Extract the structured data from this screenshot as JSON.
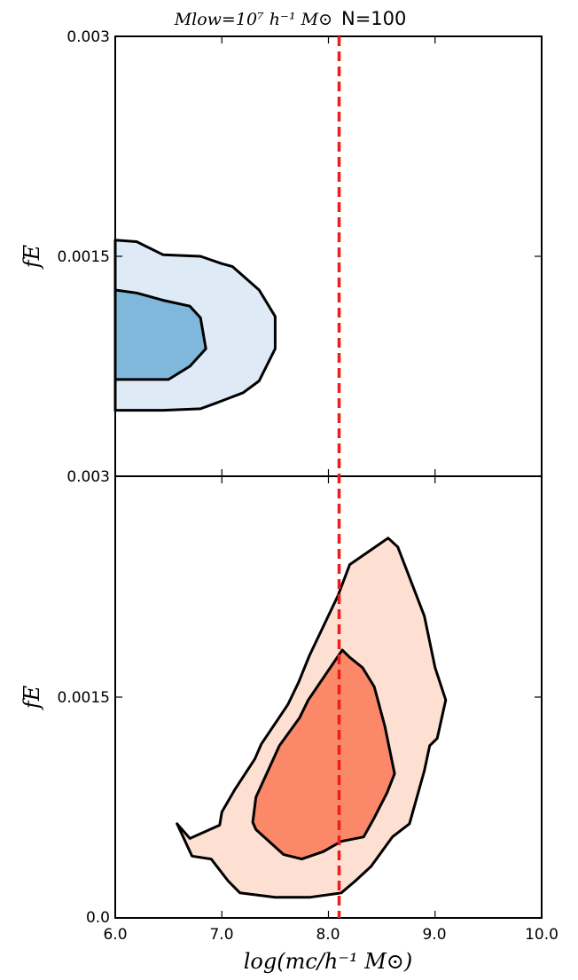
{
  "chart_data": {
    "type": "contour",
    "title_math": "Mlow=10⁷ h⁻¹ M⊙",
    "title_text": "N=100",
    "xlabel": "log(mc/h⁻¹ M⊙)",
    "xlim": [
      6.0,
      10.0
    ],
    "x_ticks": [
      "6.0",
      "7.0",
      "8.0",
      "9.0",
      "10.0"
    ],
    "reference_line": {
      "x": 8.1,
      "color": "#ee1c1c",
      "style": "dashed"
    },
    "panels": [
      {
        "id": "top",
        "ylabel": "fE",
        "ylim": [
          0.0,
          0.003
        ],
        "y_ticks": [
          "0.003",
          "0.0015"
        ],
        "outer_fill": "#deebf7",
        "inner_fill": "#7fb8da",
        "outer_contour": [
          [
            6.0,
            0.00161
          ],
          [
            6.2,
            0.0016
          ],
          [
            6.45,
            0.00151
          ],
          [
            6.8,
            0.0015
          ],
          [
            7.0,
            0.00145
          ],
          [
            7.1,
            0.00143
          ],
          [
            7.35,
            0.00127
          ],
          [
            7.5,
            0.00109
          ],
          [
            7.5,
            0.00087
          ],
          [
            7.35,
            0.00065
          ],
          [
            7.2,
            0.00057
          ],
          [
            6.95,
            0.0005
          ],
          [
            6.8,
            0.00046
          ],
          [
            6.45,
            0.00045
          ],
          [
            6.0,
            0.00045
          ]
        ],
        "inner_contour": [
          [
            6.0,
            0.00127
          ],
          [
            6.2,
            0.00125
          ],
          [
            6.45,
            0.0012
          ],
          [
            6.7,
            0.00116
          ],
          [
            6.8,
            0.00108
          ],
          [
            6.85,
            0.00087
          ],
          [
            6.7,
            0.00075
          ],
          [
            6.5,
            0.00066
          ],
          [
            6.0,
            0.00066
          ]
        ]
      },
      {
        "id": "bottom",
        "ylabel": "fE",
        "ylim": [
          0.0,
          0.003
        ],
        "y_ticks": [
          "0.003",
          "0.0015",
          "0.0"
        ],
        "outer_fill": "#fde0d2",
        "inner_fill": "#fb8868",
        "outer_contour": [
          [
            6.58,
            0.00064
          ],
          [
            6.7,
            0.00054
          ],
          [
            6.98,
            0.00063
          ],
          [
            7.0,
            0.00072
          ],
          [
            7.12,
            0.00087
          ],
          [
            7.31,
            0.00108
          ],
          [
            7.37,
            0.00118
          ],
          [
            7.62,
            0.00145
          ],
          [
            7.72,
            0.0016
          ],
          [
            7.82,
            0.00178
          ],
          [
            8.09,
            0.00219
          ],
          [
            8.2,
            0.0024
          ],
          [
            8.4,
            0.0025
          ],
          [
            8.56,
            0.00258
          ],
          [
            8.65,
            0.00252
          ],
          [
            8.9,
            0.00205
          ],
          [
            9.0,
            0.0017
          ],
          [
            9.1,
            0.00148
          ],
          [
            9.02,
            0.00122
          ],
          [
            8.95,
            0.00117
          ],
          [
            8.9,
            0.001
          ],
          [
            8.76,
            0.00064
          ],
          [
            8.6,
            0.00055
          ],
          [
            8.4,
            0.00035
          ],
          [
            8.25,
            0.00025
          ],
          [
            8.12,
            0.00017
          ],
          [
            7.82,
            0.00014
          ],
          [
            7.5,
            0.00014
          ],
          [
            7.17,
            0.00017
          ],
          [
            7.06,
            0.00025
          ],
          [
            6.9,
            0.0004
          ],
          [
            6.72,
            0.00042
          ],
          [
            6.58,
            0.00064
          ]
        ],
        "inner_contour": [
          [
            7.29,
            0.00065
          ],
          [
            7.32,
            0.00082
          ],
          [
            7.54,
            0.00117
          ],
          [
            7.73,
            0.00136
          ],
          [
            7.81,
            0.00148
          ],
          [
            8.13,
            0.00182
          ],
          [
            8.2,
            0.00177
          ],
          [
            8.32,
            0.0017
          ],
          [
            8.43,
            0.00157
          ],
          [
            8.53,
            0.0013
          ],
          [
            8.62,
            0.00098
          ],
          [
            8.55,
            0.00085
          ],
          [
            8.43,
            0.00068
          ],
          [
            8.33,
            0.00055
          ],
          [
            8.12,
            0.00052
          ],
          [
            7.95,
            0.00045
          ],
          [
            7.75,
            0.0004
          ],
          [
            7.58,
            0.00043
          ],
          [
            7.32,
            0.0006
          ],
          [
            7.29,
            0.00065
          ]
        ]
      }
    ]
  }
}
